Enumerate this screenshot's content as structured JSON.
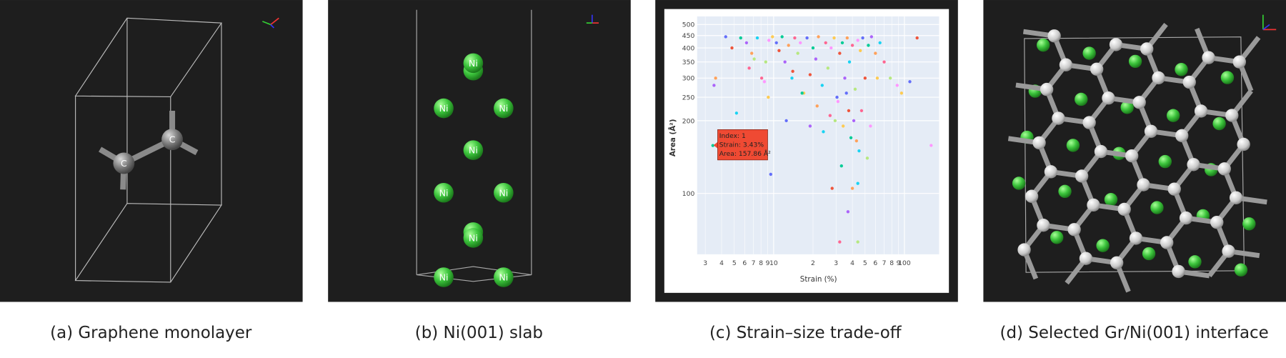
{
  "panels": [
    {
      "caption": "(a) Graphene monolayer",
      "atoms": [
        "C",
        "C"
      ]
    },
    {
      "caption": "(b) Ni(001) slab",
      "atoms": [
        "Ni",
        "Ni",
        "Ni",
        "Ni",
        "Ni",
        "Ni",
        "Ni",
        "Ni",
        "Ni",
        "Ni"
      ]
    },
    {
      "caption": "(c) Strain–size trade-off",
      "chart_data": {
        "type": "scatter",
        "xlabel": "Strain (%)",
        "ylabel": "Area (Å²)",
        "log_x": true,
        "log_y": true,
        "grid": true,
        "xlim": [
          2.6,
          184
        ],
        "ylim": [
          56,
          540
        ],
        "xticks": [
          3,
          4,
          5,
          6,
          7,
          8,
          9,
          10,
          {
            "value": 20,
            "label": "2"
          },
          {
            "value": 30,
            "label": "3"
          },
          {
            "value": 40,
            "label": "4"
          },
          {
            "value": 50,
            "label": "5"
          },
          {
            "value": 60,
            "label": "6"
          },
          {
            "value": 70,
            "label": "7"
          },
          {
            "value": 80,
            "label": "8"
          },
          {
            "value": 90,
            "label": "9"
          },
          100
        ],
        "yticks": [
          100,
          200,
          250,
          300,
          350,
          400,
          450,
          500
        ],
        "colors": [
          "#636efa",
          "#ef553b",
          "#00cc96",
          "#ab63fa",
          "#ffa15a",
          "#19d3f3",
          "#ff6692",
          "#b6e880",
          "#ff97ff",
          "#fecb52"
        ],
        "x": [
          4.3,
          4.8,
          5.6,
          6.2,
          6.8,
          7.5,
          8.1,
          8.7,
          9.2,
          9.8,
          10.5,
          11,
          11.6,
          12.2,
          13,
          13.8,
          14.5,
          15.3,
          16,
          17,
          18,
          19,
          20,
          21,
          22,
          23.5,
          25,
          26,
          27.5,
          29,
          30.5,
          32,
          33.5,
          35,
          36.5,
          38,
          40,
          42,
          44,
          46,
          48,
          50,
          53,
          56,
          60,
          65,
          70,
          78,
          88,
          95,
          110,
          125,
          3.43,
          3.5,
          3.6,
          5.2,
          6.5,
          7.1,
          8.5,
          9.1,
          12.5,
          14,
          16.5,
          19,
          21.5,
          24,
          27,
          29.5,
          31,
          34,
          36,
          37.5,
          39,
          41,
          43,
          45,
          47,
          52,
          55,
          62,
          9.5,
          28,
          33,
          37,
          40,
          44,
          32,
          44,
          160
        ],
        "y": [
          445,
          400,
          440,
          420,
          380,
          440,
          300,
          350,
          430,
          445,
          420,
          390,
          445,
          350,
          410,
          300,
          440,
          380,
          420,
          260,
          440,
          310,
          400,
          360,
          445,
          280,
          420,
          330,
          400,
          440,
          250,
          380,
          420,
          300,
          440,
          350,
          410,
          270,
          430,
          390,
          440,
          300,
          410,
          445,
          380,
          420,
          350,
          300,
          280,
          260,
          290,
          440,
          157.86,
          280,
          300,
          215,
          330,
          360,
          290,
          250,
          200,
          320,
          260,
          190,
          230,
          180,
          210,
          200,
          240,
          190,
          260,
          220,
          170,
          200,
          165,
          150,
          220,
          140,
          190,
          300,
          120,
          105,
          130,
          84,
          105,
          110,
          63,
          63,
          158
        ],
        "tooltip": [
          "Index: 1",
          "Strain: 3.43%",
          "Area: 157.86 Å²"
        ]
      }
    },
    {
      "caption": "(d) Selected Gr/Ni(001) interface"
    }
  ]
}
